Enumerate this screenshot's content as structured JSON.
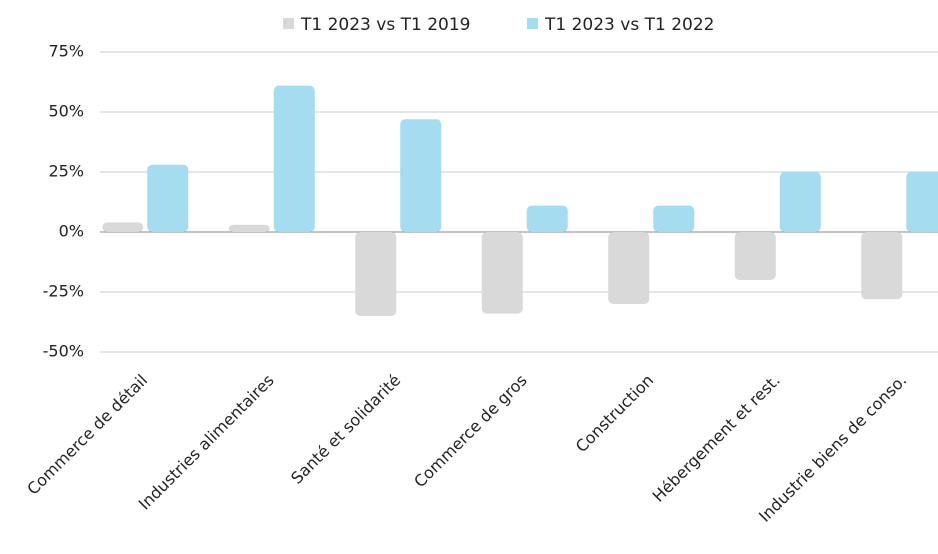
{
  "chart_data": {
    "type": "bar",
    "categories": [
      "Commerce de détail",
      "Industries alimentaires",
      "Santé et solidarité",
      "Commerce de gros",
      "Construction",
      "Hébergement et rest.",
      "Industrie biens de conso."
    ],
    "series": [
      {
        "name": "T1 2023 vs T1 2019",
        "color": "#d9d9d9",
        "values": [
          4,
          3,
          -35,
          -34,
          -30,
          -20,
          -28
        ]
      },
      {
        "name": "T1 2023 vs T1 2022",
        "color": "#a6dcf0",
        "values": [
          28,
          61,
          47,
          11,
          11,
          25,
          25
        ]
      }
    ],
    "ylim": [
      -50,
      75
    ],
    "yticks": [
      {
        "value": -50,
        "label": "-50%"
      },
      {
        "value": -25,
        "label": "-25%"
      },
      {
        "value": 0,
        "label": "0%"
      },
      {
        "value": 25,
        "label": "25%"
      },
      {
        "value": 50,
        "label": "50%"
      },
      {
        "value": 75,
        "label": "75%"
      }
    ],
    "grid": true,
    "legend": "top"
  }
}
